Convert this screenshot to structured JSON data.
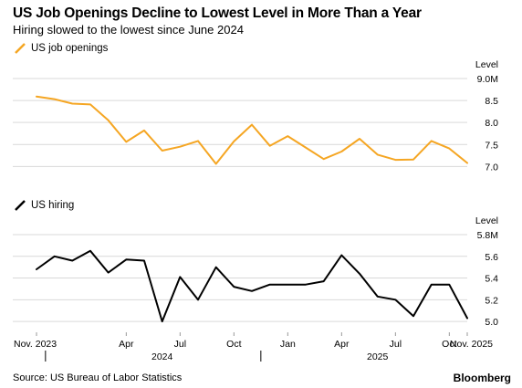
{
  "header": {
    "title": "US Job Openings Decline to Lowest Level in More Than a Year",
    "subtitle": "Hiring slowed to the lowest since June 2024"
  },
  "footer": {
    "source": "Source: US Bureau of Labor Statistics",
    "brand": "Bloomberg"
  },
  "colors": {
    "openings": "#f5a623",
    "hiring": "#000000",
    "grid": "#d9d9d9"
  },
  "chart_data": [
    {
      "type": "line",
      "legend": "US job openings",
      "level_label": "Level",
      "unit": "M",
      "ylim": [
        6.8,
        9.0
      ],
      "yticks": [
        7.0,
        7.5,
        8.0,
        8.5,
        9.0
      ],
      "ytick_labels": [
        "7.0",
        "7.5",
        "8.0",
        "8.5",
        "9.0M"
      ],
      "x": [
        "2023-11",
        "2023-12",
        "2024-01",
        "2024-02",
        "2024-03",
        "2024-04",
        "2024-05",
        "2024-06",
        "2024-07",
        "2024-08",
        "2024-09",
        "2024-10",
        "2024-11",
        "2024-12",
        "2025-01",
        "2025-02",
        "2025-03",
        "2025-04",
        "2025-05",
        "2025-06",
        "2025-07",
        "2025-08",
        "2025-09",
        "2025-10",
        "2025-11"
      ],
      "series": [
        {
          "name": "US job openings",
          "values": [
            8.59,
            8.53,
            8.43,
            8.41,
            8.05,
            7.56,
            7.82,
            7.36,
            7.45,
            7.58,
            7.06,
            7.57,
            7.95,
            7.47,
            7.69,
            7.43,
            7.17,
            7.34,
            7.63,
            7.27,
            7.15,
            7.16,
            7.58,
            7.41,
            7.08
          ]
        }
      ],
      "grid": true
    },
    {
      "type": "line",
      "legend": "US hiring",
      "level_label": "Level",
      "unit": "M",
      "ylim": [
        4.9,
        5.8
      ],
      "yticks": [
        5.0,
        5.2,
        5.4,
        5.6,
        5.8
      ],
      "ytick_labels": [
        "5.0",
        "5.2",
        "5.4",
        "5.6",
        "5.8M"
      ],
      "x": [
        "2023-11",
        "2023-12",
        "2024-01",
        "2024-02",
        "2024-03",
        "2024-04",
        "2024-05",
        "2024-06",
        "2024-07",
        "2024-08",
        "2024-09",
        "2024-10",
        "2024-11",
        "2024-12",
        "2025-01",
        "2025-02",
        "2025-03",
        "2025-04",
        "2025-05",
        "2025-06",
        "2025-07",
        "2025-08",
        "2025-09",
        "2025-10",
        "2025-11"
      ],
      "series": [
        {
          "name": "US hiring",
          "values": [
            5.48,
            5.6,
            5.56,
            5.65,
            5.45,
            5.57,
            5.56,
            5.0,
            5.41,
            5.2,
            5.5,
            5.32,
            5.28,
            5.34,
            5.34,
            5.34,
            5.37,
            5.61,
            5.44,
            5.23,
            5.2,
            5.05,
            5.34,
            5.34,
            5.03
          ]
        }
      ],
      "grid": true
    }
  ],
  "x_axis": {
    "tick_labels": [
      "Nov. 2023",
      "Apr",
      "Jul",
      "Oct",
      "Jan",
      "Apr",
      "Jul",
      "Oct",
      "Nov. 2025"
    ],
    "tick_months": [
      "2023-11",
      "2024-04",
      "2024-07",
      "2024-10",
      "2025-01",
      "2025-04",
      "2025-07",
      "2025-10",
      "2025-11"
    ],
    "year_labels": [
      "2024",
      "2025"
    ],
    "year_months": [
      "2024-06",
      "2025-06"
    ],
    "year_dividers": [
      "2023-12",
      "2024-12"
    ]
  }
}
